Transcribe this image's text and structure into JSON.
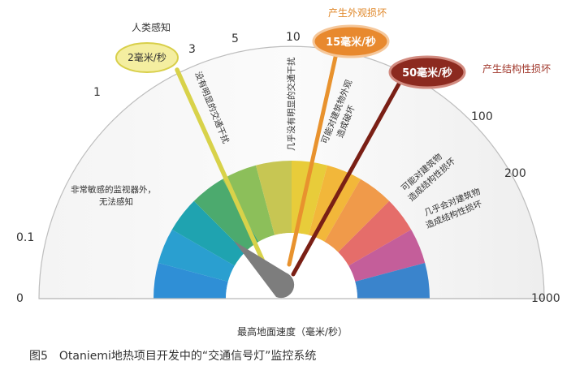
{
  "scale_labels": [
    "0",
    "0.1",
    "1",
    "3",
    "5",
    "10",
    "100",
    "200",
    "1000"
  ],
  "zone_texts": {
    "not_perceived": [
      "非常敏感的监视器外，",
      "无法感知"
    ],
    "no_obvious_disturbance": "没有明显的交通干扰",
    "almost_no_disturbance": "几乎没有明显的交通干扰",
    "possible_appearance_damage": [
      "可能对建筑物外观",
      "造成破坏"
    ],
    "possible_structural_damage": [
      "可能对建筑物",
      "造成结构性损坏"
    ],
    "almost_no_structural_damage": [
      "几乎会对建筑物",
      "造成结构性损坏"
    ]
  },
  "markers": [
    {
      "label": "2毫米/秒",
      "caption": "人类感知",
      "fill": "#f4eea0",
      "stroke": "#d8cf4a",
      "text_color": "#333333",
      "caption_color": "#333333",
      "needle_color": "#d8d24a"
    },
    {
      "label": "15毫米/秒",
      "caption": "产生外观损坏",
      "fill": "#e8892e",
      "stroke": "#f5c79a",
      "text_color": "#ffffff",
      "caption_color": "#e0882a",
      "needle_color": "#e8922e"
    },
    {
      "label": "50毫米/秒",
      "caption": "产生结构性损坏",
      "fill": "#8c2a1f",
      "stroke": "#d28b80",
      "text_color": "#ffffff",
      "caption_color": "#a0362a",
      "needle_color": "#7a1f15"
    }
  ],
  "axis_label": "最高地面速度（毫米/秒）",
  "figure_caption": "图5　Otaniemi地热项目开发中的“交通信号灯”监控系统",
  "segment_colors": [
    "#2f8fd6",
    "#2a9fd0",
    "#1fa3b0",
    "#4caa6e",
    "#8cbf5a",
    "#c7c653",
    "#e8cc3a",
    "#f2b73a",
    "#f09a4a",
    "#e56d6a",
    "#c45e9a",
    "#3a84cc"
  ]
}
